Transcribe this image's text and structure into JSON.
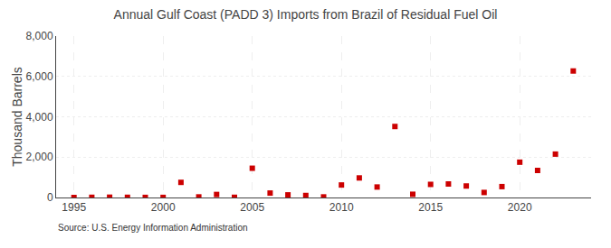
{
  "chart_data": {
    "type": "scatter",
    "title": "Annual Gulf Coast (PADD 3) Imports from Brazil of Residual Fuel Oil",
    "ylabel": "Thousand Barrels",
    "annotations": [
      "Source: U.S. Energy Information Administration"
    ],
    "x": [
      1995,
      1996,
      1997,
      1998,
      1999,
      2000,
      2001,
      2002,
      2003,
      2004,
      2005,
      2006,
      2007,
      2008,
      2009,
      2010,
      2011,
      2012,
      2013,
      2014,
      2015,
      2016,
      2017,
      2018,
      2019,
      2020,
      2021,
      2022,
      2023
    ],
    "values": [
      0,
      10,
      15,
      10,
      5,
      5,
      750,
      30,
      150,
      10,
      1450,
      220,
      130,
      100,
      30,
      620,
      970,
      520,
      3520,
      160,
      650,
      670,
      570,
      250,
      540,
      1750,
      1340,
      2150,
      6270
    ],
    "color": "#cc0000",
    "marker": "square",
    "xlim": [
      1994,
      2024
    ],
    "xticks": [
      1995,
      2000,
      2005,
      2010,
      2015,
      2020
    ],
    "ylim": [
      0,
      8000
    ],
    "yticks": [
      0,
      {
        "value": 2000,
        "label": "2,000"
      },
      {
        "value": 4000,
        "label": "4,000"
      },
      {
        "value": 6000,
        "label": "6,000"
      },
      {
        "value": 8000,
        "label": "8,000"
      }
    ],
    "grid": true
  }
}
